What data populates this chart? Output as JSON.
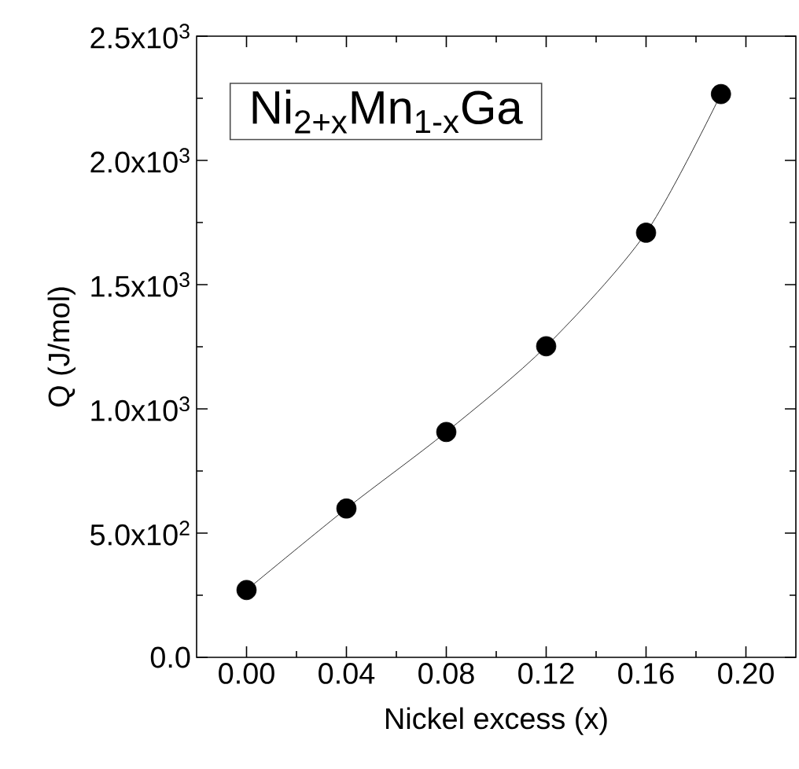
{
  "chart_data": {
    "type": "line",
    "xlabel": "Nickel excess (x)",
    "ylabel": "Q (J/mol)",
    "x": [
      0.0,
      0.04,
      0.08,
      0.12,
      0.16,
      0.19
    ],
    "series": [
      {
        "color": "#000000",
        "values": [
          271,
          599,
          907,
          1252,
          1709,
          2267
        ]
      }
    ],
    "xlim": [
      -0.02,
      0.22
    ],
    "xticks": [
      {
        "value": 0,
        "label": "0.00"
      },
      0.04,
      0.08,
      0.12,
      0.16,
      {
        "value": 0.2,
        "label": "0.20"
      }
    ],
    "ylim": [
      0,
      2500
    ],
    "yticks": [
      {
        "value": 0,
        "label": "0.0"
      },
      {
        "value": 500,
        "label": "5.0x10$^{2}$"
      },
      {
        "value": 1000,
        "label": "1.0x10$^{3}$"
      },
      {
        "value": 1500,
        "label": "1.5x10$^{3}$"
      },
      {
        "value": 2000,
        "label": "2.0x10$^{3}$"
      },
      {
        "value": 2500,
        "label": "2.5x10$^{3}$"
      }
    ],
    "annotations": [
      "Ni$_{2+x}$Mn$_{1-x}$Ga"
    ],
    "marker": "circle",
    "line_style": "solid"
  }
}
